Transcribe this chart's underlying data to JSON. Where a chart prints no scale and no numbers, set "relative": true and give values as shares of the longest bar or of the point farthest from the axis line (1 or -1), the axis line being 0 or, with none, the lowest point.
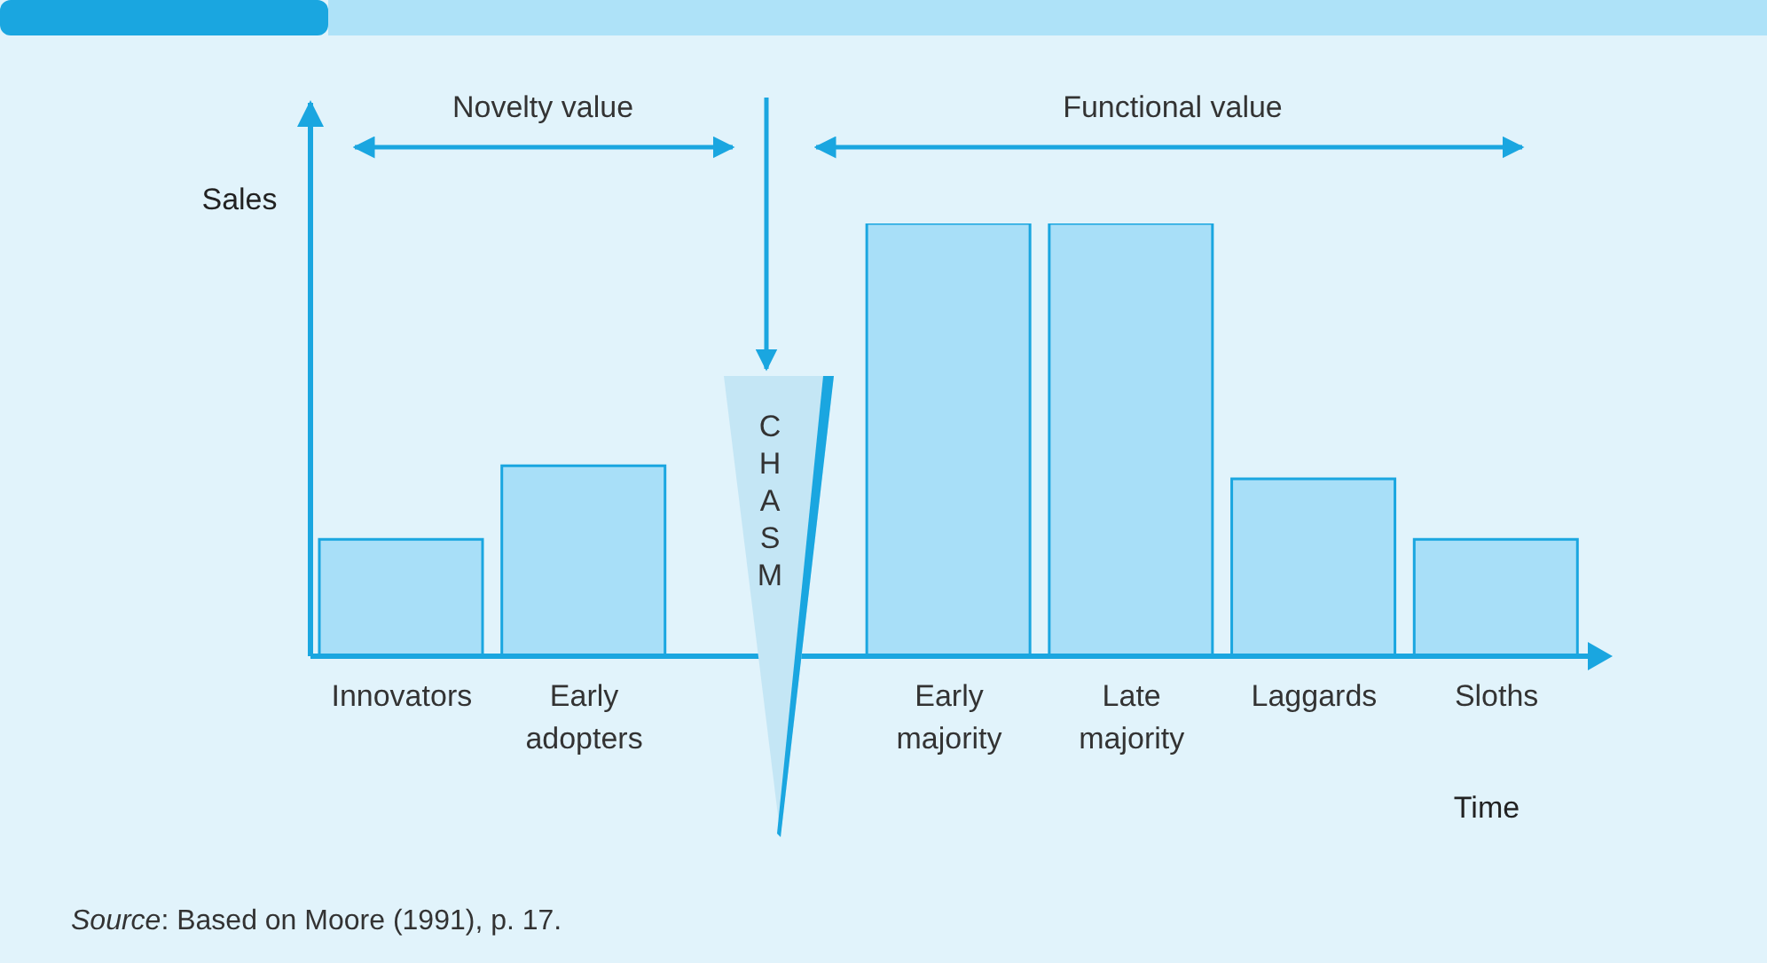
{
  "chart_data": {
    "type": "bar",
    "relative": true,
    "xlabel": "Time",
    "ylabel": "Sales",
    "categories": [
      "Innovators",
      "Early adopters",
      "Early majority",
      "Late majority",
      "Laggards",
      "Sloths"
    ],
    "values": [
      0.27,
      0.44,
      1,
      1,
      0.41,
      0.27
    ],
    "color": "#a8dff8",
    "annotations": [
      "Novelty value",
      "Functional value",
      "CHASM",
      "Source: Based on Moore (1991), p. 17."
    ]
  }
}
